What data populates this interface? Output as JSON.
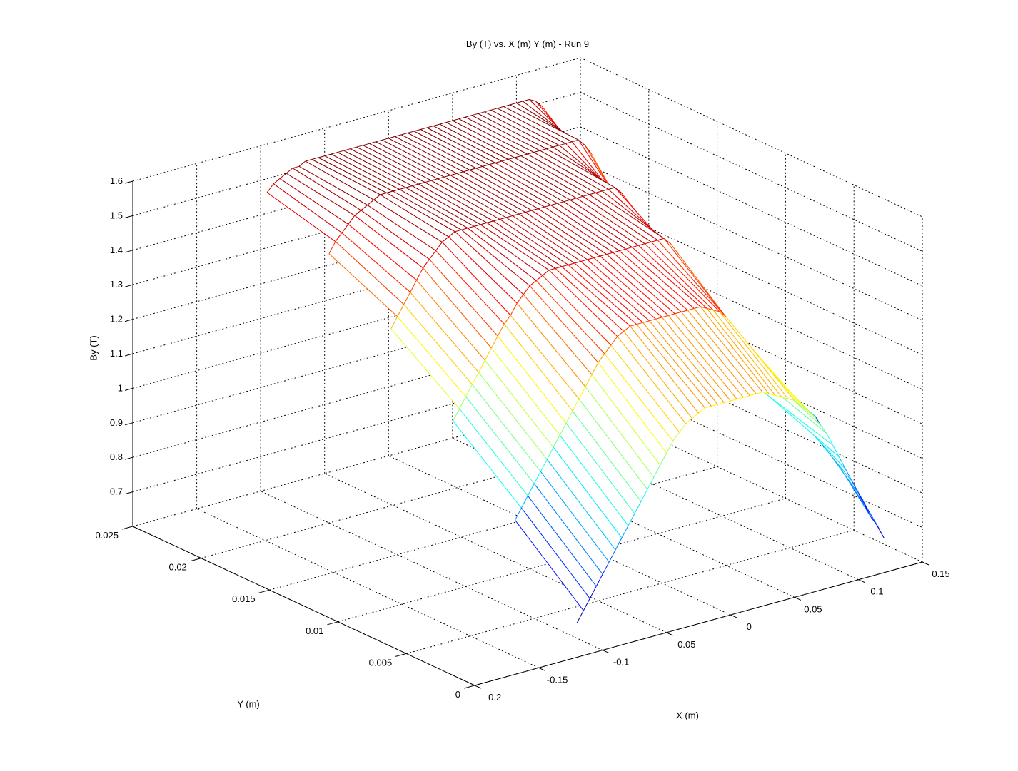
{
  "title": "By (T) vs. X (m) Y (m) - Run 9",
  "chart_data": {
    "type": "surface",
    "title": "By (T) vs. X (m) Y (m) - Run 9",
    "xlabel": "X (m)",
    "ylabel": "Y (m)",
    "zlabel": "By (T)",
    "colormap": "jet",
    "mesh_style": "white-faced mesh with flat colored edges, hidden-line removal",
    "background": "#ffffff",
    "axis_color": "#000000",
    "grid": true,
    "view": {
      "azimuth": -37.5,
      "elevation": 30
    },
    "xlim": [
      -0.2,
      0.15
    ],
    "ylim": [
      0,
      0.025
    ],
    "zlim": [
      0.6,
      1.6
    ],
    "color_range": [
      0.7,
      1.52
    ],
    "xticks": [
      -0.2,
      -0.15,
      -0.1,
      -0.05,
      0,
      0.05,
      0.1,
      0.15
    ],
    "xtick_labels": [
      "-0.2",
      "-0.15",
      "-0.1",
      "-0.05",
      "0",
      "0.05",
      "0.1",
      "0.15"
    ],
    "yticks": [
      0,
      0.005,
      0.01,
      0.015,
      0.02,
      0.025
    ],
    "ytick_labels": [
      "0",
      "0.005",
      "0.01",
      "0.015",
      "0.02",
      "0.025"
    ],
    "zticks": [
      0.7,
      0.8,
      0.9,
      1,
      1.1,
      1.2,
      1.3,
      1.4,
      1.5,
      1.6
    ],
    "ztick_labels": [
      "0.7",
      "0.8",
      "0.9",
      "1",
      "1.1",
      "1.2",
      "1.3",
      "1.4",
      "1.5",
      "1.6"
    ],
    "x": [
      -0.12,
      -0.115,
      -0.11,
      -0.105,
      -0.1,
      -0.095,
      -0.09,
      -0.085,
      -0.08,
      -0.075,
      -0.07,
      -0.065,
      -0.06,
      -0.055,
      -0.05,
      -0.045,
      -0.04,
      -0.035,
      -0.03,
      -0.025,
      -0.02,
      -0.015,
      -0.01,
      -0.005,
      0,
      0.005,
      0.01,
      0.015,
      0.02,
      0.025,
      0.03,
      0.035,
      0.04,
      0.045,
      0.05,
      0.055,
      0.06,
      0.065,
      0.07,
      0.075,
      0.08,
      0.085,
      0.09,
      0.095,
      0.1,
      0.105,
      0.11,
      0.115,
      0.12
    ],
    "y": [
      0,
      0.005,
      0.01,
      0.015,
      0.02,
      0.025
    ],
    "z": [
      [
        0.7,
        0.73,
        0.76,
        0.79,
        0.82,
        0.85,
        0.88,
        0.91,
        0.94,
        0.97,
        1.0,
        1.03,
        1.06,
        1.09,
        1.12,
        1.15,
        1.17,
        1.19,
        1.2,
        1.21,
        1.22,
        1.22,
        1.22,
        1.22,
        1.22,
        1.22,
        1.22,
        1.22,
        1.22,
        1.22,
        1.21,
        1.2,
        1.19,
        1.18,
        1.17,
        1.15,
        1.13,
        1.11,
        1.08,
        1.05,
        1.01,
        0.97,
        0.93,
        0.89,
        0.85,
        0.81,
        0.77,
        0.74,
        0.7
      ],
      [
        null,
        0.9,
        0.93,
        0.96,
        0.99,
        1.02,
        1.05,
        1.08,
        1.11,
        1.14,
        1.17,
        1.2,
        1.23,
        1.26,
        1.29,
        1.31,
        1.33,
        1.35,
        1.36,
        1.37,
        1.37,
        1.37,
        1.37,
        1.37,
        1.37,
        1.37,
        1.37,
        1.37,
        1.37,
        1.37,
        1.37,
        1.36,
        1.35,
        1.34,
        1.32,
        1.29,
        1.26,
        1.22,
        1.17,
        1.12,
        1.07,
        1.05,
        1.05,
        1.04,
        1.03,
        1.02,
        1.0,
        0.98,
        0.96
      ],
      [
        null,
        null,
        1.09,
        1.12,
        1.15,
        1.18,
        1.21,
        1.24,
        1.27,
        1.3,
        1.33,
        1.35,
        1.38,
        1.4,
        1.42,
        1.43,
        1.44,
        1.45,
        1.45,
        1.45,
        1.45,
        1.45,
        1.45,
        1.45,
        1.45,
        1.45,
        1.45,
        1.45,
        1.45,
        1.45,
        1.45,
        1.45,
        1.45,
        1.45,
        1.45,
        1.45,
        1.43,
        1.4,
        1.36,
        1.31,
        1.26,
        1.21,
        1.16,
        1.12,
        1.08,
        1.05,
        1.02,
        1.0,
        0.98
      ],
      [
        null,
        null,
        null,
        1.26,
        1.29,
        1.32,
        1.35,
        1.38,
        1.41,
        1.43,
        1.45,
        1.47,
        1.48,
        1.49,
        1.49,
        1.49,
        1.49,
        1.49,
        1.49,
        1.49,
        1.49,
        1.49,
        1.49,
        1.49,
        1.49,
        1.49,
        1.49,
        1.49,
        1.49,
        1.49,
        1.49,
        1.49,
        1.49,
        1.49,
        1.49,
        1.49,
        1.49,
        1.49,
        1.49,
        1.47,
        1.44,
        1.4,
        1.35,
        1.3,
        1.25,
        1.2,
        1.16,
        1.12,
        1.09
      ],
      [
        null,
        null,
        null,
        null,
        1.38,
        1.41,
        1.43,
        1.45,
        1.47,
        1.48,
        1.49,
        1.5,
        1.51,
        1.51,
        1.51,
        1.51,
        1.51,
        1.51,
        1.51,
        1.51,
        1.51,
        1.51,
        1.51,
        1.51,
        1.51,
        1.51,
        1.51,
        1.51,
        1.51,
        1.51,
        1.51,
        1.51,
        1.51,
        1.51,
        1.51,
        1.51,
        1.51,
        1.51,
        1.51,
        1.51,
        1.51,
        1.51,
        1.51,
        1.51,
        1.49,
        1.46,
        1.42,
        1.37,
        1.32
      ],
      [
        null,
        null,
        null,
        null,
        null,
        1.46,
        1.48,
        1.49,
        1.5,
        1.51,
        1.51,
        1.52,
        1.52,
        1.52,
        1.52,
        1.52,
        1.52,
        1.52,
        1.52,
        1.52,
        1.52,
        1.52,
        1.52,
        1.52,
        1.52,
        1.52,
        1.52,
        1.52,
        1.52,
        1.52,
        1.52,
        1.52,
        1.52,
        1.52,
        1.52,
        1.52,
        1.52,
        1.52,
        1.52,
        1.52,
        1.52,
        1.52,
        1.52,
        1.52,
        1.52,
        1.52,
        1.52,
        1.51,
        1.49
      ]
    ]
  }
}
